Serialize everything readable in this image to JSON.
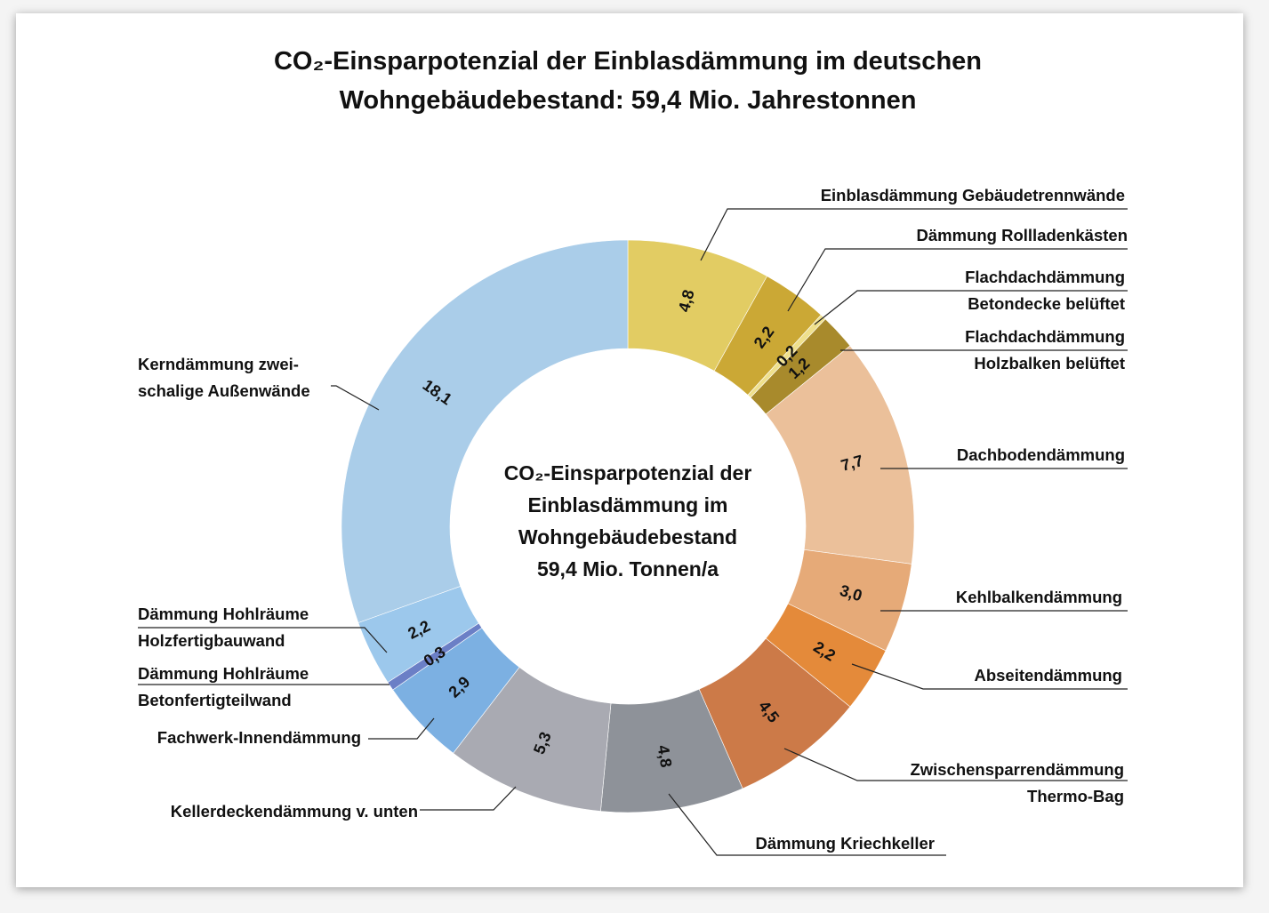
{
  "chart_data": {
    "type": "pie",
    "title": [
      "CO₂-Einsparpotenzial der Einblasdämmung im deutschen",
      "Wohngebäudebestand: 59,4 Mio. Jahrestonnen"
    ],
    "center_text": [
      "CO₂-Einsparpotenzial der",
      "Einblasdämmung im",
      "Wohngebäudebestand",
      "59,4 Mio. Tonnen/a"
    ],
    "total": 59.4,
    "slices": [
      {
        "label": [
          "Einblasdämmung Gebäudetrennwände"
        ],
        "value": 4.8,
        "display": "4,8",
        "color": "#e2cc63"
      },
      {
        "label": [
          "Dämmung Rollladenkästen"
        ],
        "value": 2.2,
        "display": "2,2",
        "color": "#cba835"
      },
      {
        "label": [
          "Flachdachdämmung",
          "Betondecke belüftet"
        ],
        "value": 0.2,
        "display": "0,2",
        "color": "#efe08c"
      },
      {
        "label": [
          "Flachdachdämmung",
          "Holzbalken belüftet"
        ],
        "value": 1.2,
        "display": "1,2",
        "color": "#a88a2c"
      },
      {
        "label": [
          "Dachbodendämmung"
        ],
        "value": 7.7,
        "display": "7,7",
        "color": "#ebc09a"
      },
      {
        "label": [
          "Kehlbalkendämmung"
        ],
        "value": 3.0,
        "display": "3,0",
        "color": "#e6aa78"
      },
      {
        "label": [
          "Abseitendämmung"
        ],
        "value": 2.2,
        "display": "2,2",
        "color": "#e48a3a"
      },
      {
        "label": [
          "Zwischensparrendämmung",
          "Thermo-Bag"
        ],
        "value": 4.5,
        "display": "4,5",
        "color": "#cc7a48"
      },
      {
        "label": [
          "Dämmung Kriechkeller"
        ],
        "value": 4.8,
        "display": "4,8",
        "color": "#8e9299"
      },
      {
        "label": [
          "Kellerdeckendämmung v. unten"
        ],
        "value": 5.3,
        "display": "5,3",
        "color": "#a9aab2"
      },
      {
        "label": [
          "Fachwerk-Innendämmung"
        ],
        "value": 2.9,
        "display": "2,9",
        "color": "#7cb0e2"
      },
      {
        "label": [
          "Dämmung Hohlräume",
          "Betonfertigteilwand"
        ],
        "value": 0.3,
        "display": "0,3",
        "color": "#6b7fc6"
      },
      {
        "label": [
          "Dämmung Hohlräume",
          "Holzfertigbauwand"
        ],
        "value": 2.2,
        "display": "2,2",
        "color": "#9cc8ec"
      },
      {
        "label": [
          "Kerndämmung zwei-",
          "schalige Außenwände"
        ],
        "value": 18.1,
        "display": "18,1",
        "color": "#aacde9"
      }
    ]
  }
}
